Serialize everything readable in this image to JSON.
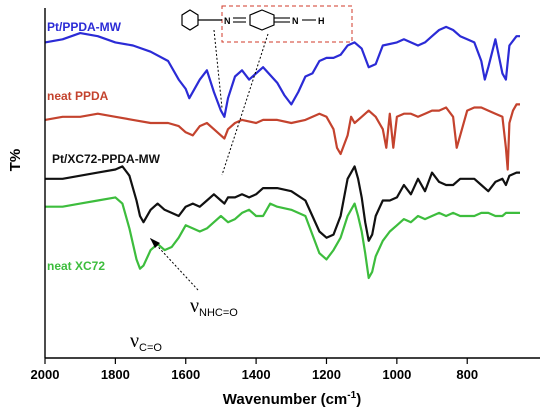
{
  "chart_data": {
    "type": "line",
    "xlabel": "Wavenumber (cm",
    "xlabel_sup": "-1",
    "xlabel_close": ")",
    "ylabel": "T%",
    "xlim": [
      2000,
      650
    ],
    "x_ticks": [
      2000,
      1800,
      1600,
      1400,
      1200,
      1000,
      800
    ],
    "y_ticks_shown": false,
    "series": [
      {
        "name": "Pt/PPDA-MW",
        "color": "#2b2bd6",
        "x": [
          2000,
          1950,
          1900,
          1850,
          1800,
          1750,
          1700,
          1650,
          1620,
          1600,
          1590,
          1560,
          1540,
          1520,
          1500,
          1490,
          1480,
          1460,
          1440,
          1420,
          1380,
          1340,
          1320,
          1300,
          1280,
          1260,
          1240,
          1220,
          1200,
          1180,
          1160,
          1140,
          1120,
          1100,
          1080,
          1060,
          1040,
          1000,
          980,
          960,
          940,
          920,
          900,
          880,
          860,
          840,
          820,
          800,
          780,
          760,
          750,
          740,
          720,
          700,
          690,
          680,
          660,
          650
        ],
        "y": [
          96,
          97,
          99,
          98,
          96,
          95,
          93,
          90,
          84,
          81,
          78,
          84,
          87,
          80,
          74,
          72,
          78,
          85,
          87,
          84,
          88,
          83,
          79,
          76,
          80,
          85,
          86,
          90,
          91,
          91,
          92,
          95,
          96,
          94,
          88,
          89,
          95,
          96,
          97,
          96,
          95,
          96,
          98,
          100,
          101,
          100,
          98,
          97,
          96,
          90,
          84,
          88,
          97,
          86,
          84,
          95,
          98,
          98
        ]
      },
      {
        "name": "neat PPDA",
        "color": "#c4432e",
        "x": [
          2000,
          1950,
          1900,
          1850,
          1800,
          1750,
          1700,
          1650,
          1620,
          1600,
          1580,
          1560,
          1540,
          1520,
          1500,
          1490,
          1480,
          1460,
          1440,
          1400,
          1380,
          1340,
          1300,
          1260,
          1220,
          1200,
          1180,
          1170,
          1160,
          1140,
          1130,
          1120,
          1100,
          1080,
          1060,
          1040,
          1030,
          1020,
          1010,
          1000,
          980,
          960,
          940,
          920,
          900,
          880,
          860,
          840,
          830,
          820,
          800,
          780,
          760,
          740,
          720,
          700,
          690,
          685,
          680,
          670,
          660,
          650
        ],
        "y": [
          71,
          72,
          72,
          73,
          72,
          71,
          70,
          70,
          69,
          67,
          66,
          69,
          70,
          68,
          66,
          65,
          68,
          70,
          71,
          70,
          71,
          71,
          70,
          71,
          73,
          72,
          68,
          62,
          60,
          66,
          72,
          70,
          72,
          74,
          72,
          68,
          62,
          73,
          62,
          72,
          73,
          73,
          72,
          73,
          74,
          74,
          75,
          72,
          62,
          66,
          74,
          75,
          75,
          74,
          73,
          72,
          62,
          55,
          70,
          74,
          76,
          76
        ]
      },
      {
        "name": "Pt/XC72-PPDA-MW",
        "color": "#111111",
        "x": [
          2000,
          1950,
          1900,
          1850,
          1800,
          1780,
          1760,
          1740,
          1730,
          1720,
          1700,
          1680,
          1660,
          1640,
          1620,
          1600,
          1580,
          1560,
          1540,
          1520,
          1500,
          1490,
          1480,
          1460,
          1440,
          1420,
          1400,
          1380,
          1360,
          1340,
          1300,
          1260,
          1240,
          1220,
          1200,
          1180,
          1160,
          1140,
          1120,
          1110,
          1100,
          1090,
          1080,
          1070,
          1060,
          1040,
          1020,
          1000,
          980,
          960,
          940,
          920,
          900,
          880,
          860,
          840,
          820,
          800,
          780,
          760,
          740,
          720,
          700,
          690,
          680,
          660,
          650
        ],
        "y": [
          52,
          52,
          53,
          54,
          55,
          56,
          53,
          45,
          40,
          38,
          42,
          44,
          42,
          41,
          40,
          43,
          44,
          43,
          45,
          47,
          45,
          44,
          46,
          46,
          47,
          46,
          47,
          49,
          49,
          49,
          48,
          45,
          40,
          35,
          33,
          34,
          40,
          52,
          56,
          52,
          46,
          38,
          32,
          34,
          40,
          45,
          45,
          46,
          50,
          47,
          52,
          48,
          54,
          51,
          50,
          50,
          52,
          52,
          52,
          50,
          48,
          51,
          52,
          50,
          53,
          54,
          54
        ]
      },
      {
        "name": "neat XC72",
        "color": "#3dbd3d",
        "x": [
          2000,
          1950,
          1900,
          1850,
          1800,
          1780,
          1760,
          1740,
          1730,
          1720,
          1700,
          1680,
          1660,
          1640,
          1620,
          1600,
          1580,
          1560,
          1540,
          1520,
          1500,
          1480,
          1460,
          1440,
          1420,
          1400,
          1380,
          1360,
          1340,
          1300,
          1260,
          1240,
          1220,
          1200,
          1180,
          1160,
          1140,
          1120,
          1110,
          1100,
          1090,
          1080,
          1070,
          1060,
          1040,
          1020,
          1000,
          980,
          960,
          940,
          920,
          900,
          880,
          860,
          840,
          820,
          800,
          780,
          760,
          740,
          720,
          700,
          690,
          680,
          660,
          650
        ],
        "y": [
          43,
          43,
          44,
          45,
          46,
          44,
          36,
          26,
          23,
          24,
          29,
          31,
          29,
          30,
          33,
          37,
          36,
          35,
          36,
          38,
          40,
          38,
          39,
          41,
          42,
          40,
          40,
          44,
          43,
          42,
          40,
          34,
          28,
          26,
          29,
          33,
          40,
          44,
          40,
          35,
          28,
          20,
          22,
          27,
          32,
          35,
          37,
          39,
          38,
          40,
          39,
          40,
          41,
          40,
          41,
          40,
          40,
          40,
          41,
          41,
          40,
          40,
          41,
          41,
          41,
          41
        ]
      }
    ],
    "annotations": {
      "vco_main": "ν",
      "vco_sub": "C=O",
      "vnhco_main": "ν",
      "vnhco_sub": "NHC=O",
      "structure": {
        "n1": "N",
        "n2": "N",
        "h": "H"
      }
    }
  }
}
